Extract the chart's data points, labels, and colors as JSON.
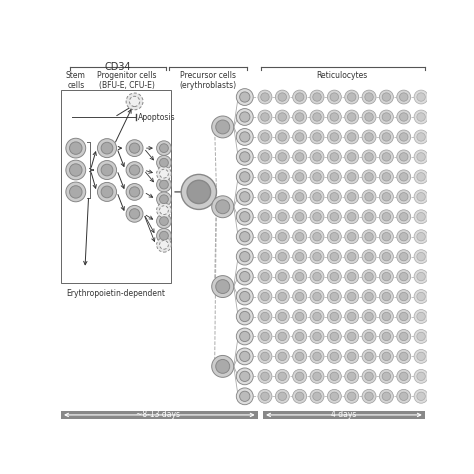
{
  "title": "CD34",
  "label_stem": "Stem\ncells",
  "label_prog": "Progenitor cells\n(BFU-E, CFU-E)",
  "label_prec": "Precursor cells\n(erythroblasts)",
  "label_retic": "Reticulocytes",
  "apoptosis_label": "Apoptosis",
  "epo_label": "Erythropoietin-dependent",
  "days1_label": "~8-13 days",
  "days2_label": "4 days",
  "bg_color": "#ffffff",
  "cell_dark": "#aaaaaa",
  "cell_mid": "#bbbbbb",
  "cell_light": "#dddddd",
  "cell_white": "#f0f0f0",
  "arrow_color": "#333333",
  "line_color": "#aaaaaa",
  "bar_color": "#888888",
  "text_color": "#333333"
}
